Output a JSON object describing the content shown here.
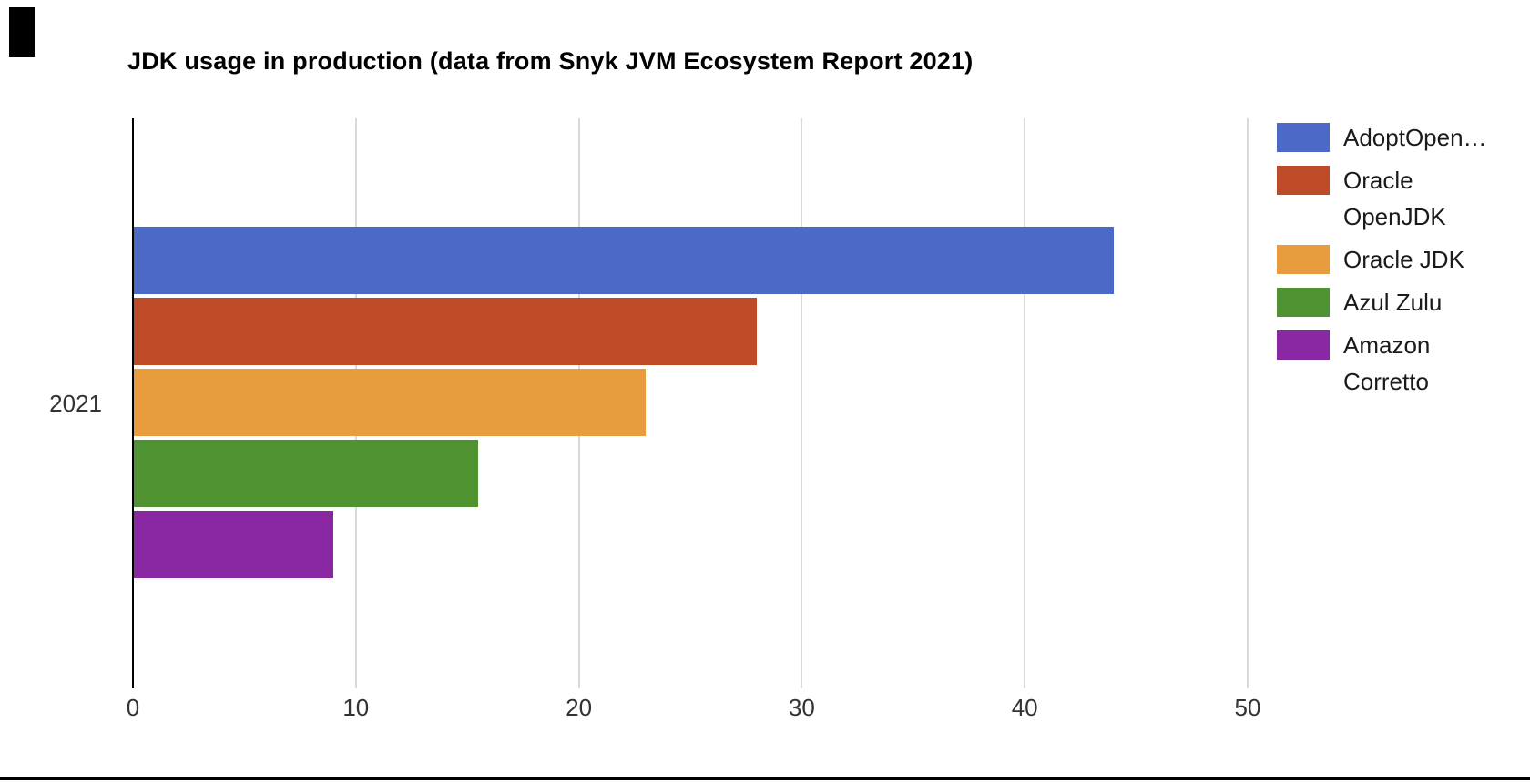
{
  "page": {
    "background": "#ffffff"
  },
  "title": "JDK usage in production (data from Snyk JVM Ecosystem Report 2021)",
  "chart_data": {
    "type": "bar",
    "orientation": "horizontal",
    "title": "JDK usage in production (data from Snyk JVM Ecosystem Report 2021)",
    "categories": [
      "2021"
    ],
    "series": [
      {
        "name": "AdoptOpenJDK",
        "legend_lines": [
          "AdoptOpen…"
        ],
        "value": 44,
        "color": "#4C69C8"
      },
      {
        "name": "Oracle OpenJDK",
        "legend_lines": [
          "Oracle",
          "OpenJDK"
        ],
        "value": 28,
        "color": "#BE4B27"
      },
      {
        "name": "Oracle JDK",
        "legend_lines": [
          "Oracle JDK"
        ],
        "value": 23,
        "color": "#E89C3D"
      },
      {
        "name": "Azul Zulu",
        "legend_lines": [
          "Azul Zulu"
        ],
        "value": 15.5,
        "color": "#4F9231"
      },
      {
        "name": "Amazon Corretto",
        "legend_lines": [
          "Amazon",
          "Corretto"
        ],
        "value": 9,
        "color": "#8928A2"
      }
    ],
    "xlabel": "",
    "ylabel": "",
    "x_ticks": [
      0,
      10,
      20,
      30,
      40,
      50
    ],
    "xlim": [
      0,
      50
    ],
    "grid": true,
    "legend_position": "right"
  },
  "axis": {
    "category_label": "2021",
    "tick_labels": [
      "0",
      "10",
      "20",
      "30",
      "40",
      "50"
    ]
  },
  "colors": {
    "grid": "#d9d9d9",
    "axis": "#000000",
    "tick_text": "#333333",
    "title_text": "#000000"
  }
}
